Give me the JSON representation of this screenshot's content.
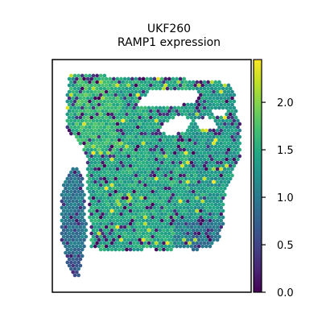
{
  "chart_data": {
    "type": "scatter",
    "title": "UKF260",
    "subtitle": "RAMP1 expression",
    "xlabel": "",
    "ylabel": "",
    "colorbar": {
      "colormap": "viridis",
      "range": [
        0.0,
        2.45
      ],
      "ticks": [
        0.0,
        0.5,
        1.0,
        1.5,
        2.0
      ],
      "tick_labels": [
        "0.0",
        "0.5",
        "1.0",
        "1.5",
        "2.0"
      ]
    },
    "grid": false,
    "point_count_approx": 3300,
    "colors": {
      "low": "#440154",
      "mid": "#21918c",
      "high": "#fde725"
    }
  }
}
